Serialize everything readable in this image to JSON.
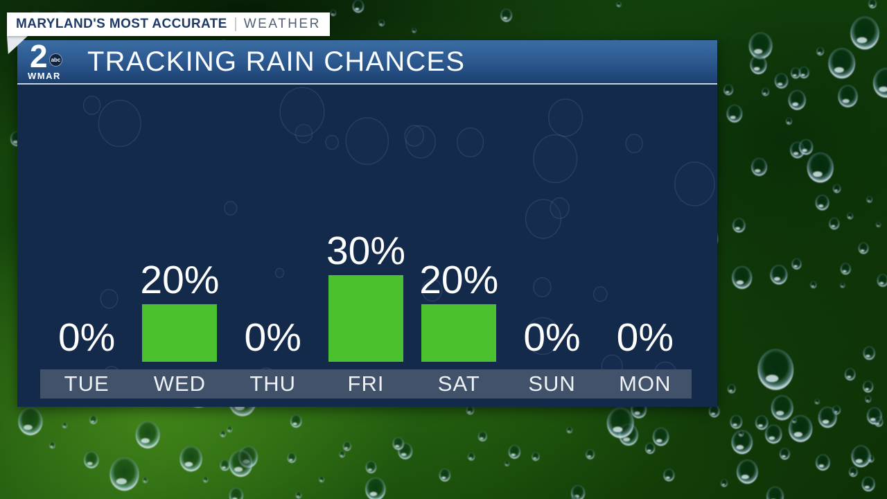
{
  "banner": {
    "primary": "MARYLAND'S MOST ACCURATE",
    "secondary": "WEATHER"
  },
  "logo": {
    "number": "2",
    "network": "abc",
    "station": "WMAR"
  },
  "header": {
    "title": "TRACKING RAIN CHANCES"
  },
  "chart_data": {
    "type": "bar",
    "title": "TRACKING RAIN CHANCES",
    "categories": [
      "TUE",
      "WED",
      "THU",
      "FRI",
      "SAT",
      "SUN",
      "MON"
    ],
    "values": [
      0,
      20,
      0,
      30,
      20,
      0,
      0
    ],
    "value_labels": [
      "0%",
      "20%",
      "0%",
      "30%",
      "20%",
      "0%",
      "0%"
    ],
    "unit": "%",
    "ylim": [
      0,
      100
    ],
    "grid": false,
    "legend": "none",
    "value_label_position": "above-bar",
    "bar_color": "#4cc130"
  },
  "colors": {
    "bar_green": "#4cc130",
    "panel_navy": "#132a4b",
    "header_blue_top": "#3a6ca2",
    "header_blue_bottom": "#1d4070",
    "day_strip": "#42526b",
    "banner_bg": "#ffffff",
    "banner_primary_text": "#1e3a69",
    "banner_secondary_text": "#4e5f78"
  }
}
